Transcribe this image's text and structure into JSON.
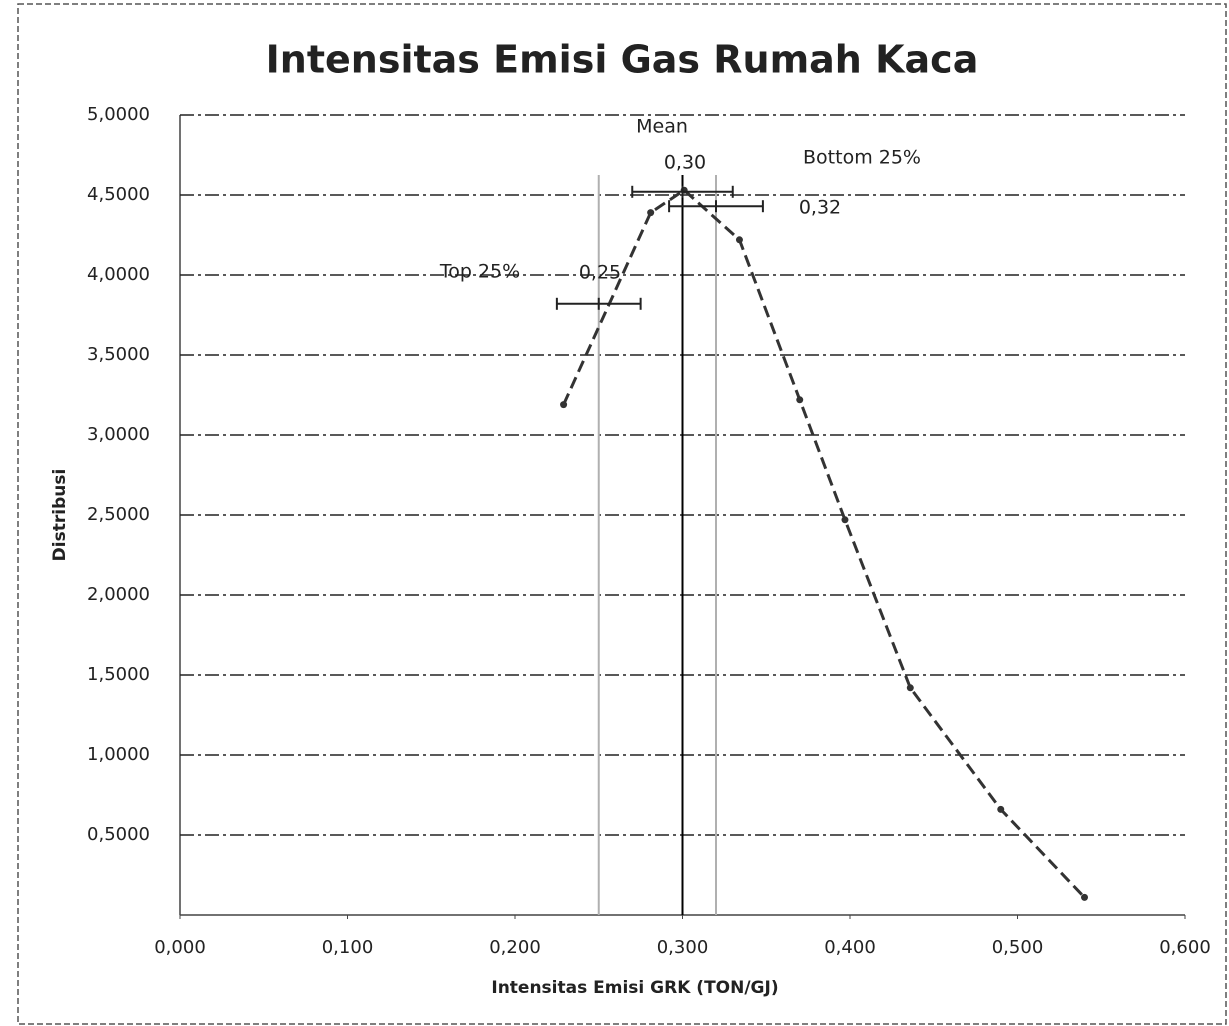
{
  "chart_data": {
    "type": "line",
    "title": "Intensitas Emisi Gas Rumah Kaca",
    "x_label": "Intensitas Emisi GRK (TON/GJ)",
    "y_label": "Distribusi",
    "x": [
      0.229,
      0.281,
      0.301,
      0.334,
      0.37,
      0.397,
      0.436,
      0.49,
      0.54
    ],
    "values": [
      3.19,
      4.39,
      4.53,
      4.22,
      3.22,
      2.47,
      1.42,
      0.66,
      0.11
    ],
    "color": "#333333",
    "error_bars": [
      {
        "x": 0.25,
        "y": 3.82,
        "error": 0.025
      },
      {
        "x": 0.3,
        "y": 4.52,
        "error": 0.03
      },
      {
        "x": 0.32,
        "y": 4.43,
        "error": 0.028
      }
    ],
    "vlines": [
      {
        "x": 0.25,
        "color": "#b0b0b0"
      },
      {
        "x": 0.3,
        "color": "#000000"
      },
      {
        "x": 0.32,
        "color": "#b0b0b0"
      }
    ],
    "annotations": [
      "Mean",
      "0,30",
      "Bottom 25%",
      "0,32",
      "Top 25%",
      "0,25"
    ],
    "xlim": [
      0,
      0.6
    ],
    "ylim": [
      0,
      5
    ],
    "xticks": [
      {
        "value": 0,
        "label": "0,000"
      },
      {
        "value": 0.1,
        "label": "0,100"
      },
      {
        "value": 0.2,
        "label": "0,200"
      },
      {
        "value": 0.3,
        "label": "0,300"
      },
      {
        "value": 0.4,
        "label": "0,400"
      },
      {
        "value": 0.5,
        "label": "0,500"
      },
      {
        "value": 0.6,
        "label": "0,600"
      }
    ],
    "yticks": [
      {
        "value": 0.5,
        "label": "0,5000"
      },
      {
        "value": 1,
        "label": "1,0000"
      },
      {
        "value": 1.5,
        "label": "1,5000"
      },
      {
        "value": 2,
        "label": "2,0000"
      },
      {
        "value": 2.5,
        "label": "2,5000"
      },
      {
        "value": 3,
        "label": "3,0000"
      },
      {
        "value": 3.5,
        "label": "3,5000"
      },
      {
        "value": 4,
        "label": "4,0000"
      },
      {
        "value": 4.5,
        "label": "4,5000"
      },
      {
        "value": 5,
        "label": "5,0000"
      }
    ],
    "grid": true
  }
}
